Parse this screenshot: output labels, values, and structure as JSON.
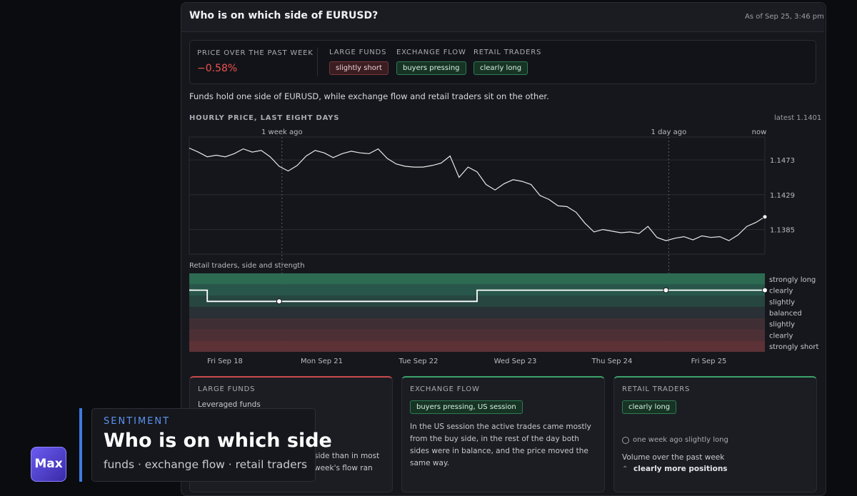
{
  "header": {
    "title": "Who is on which side of EURUSD?",
    "timestamp": "As of Sep 25, 3:46 pm"
  },
  "summary": {
    "price_label": "PRICE OVER THE PAST WEEK",
    "price_change": "−0.58%",
    "groups": [
      {
        "label": "LARGE FUNDS",
        "pill": "slightly short"
      },
      {
        "label": "EXCHANGE FLOW",
        "pill": "buyers pressing"
      },
      {
        "label": "RETAIL TRADERS",
        "pill": "clearly long"
      }
    ]
  },
  "description": "Funds hold one side of EURUSD, while exchange flow and retail traders sit on the other.",
  "chart_data": [
    {
      "type": "line",
      "title": "HOURLY PRICE, LAST EIGHT DAYS",
      "annotation": "latest 1.1401",
      "markers": [
        "1 week ago",
        "1 day ago",
        "now"
      ],
      "day_labels": [
        "Fri Sep 18",
        "Mon Sep 21",
        "Tue Sep 22",
        "Wed Sep 23",
        "Thu Sep 24",
        "Fri Sep 25"
      ],
      "values": [
        1.1488,
        1.1483,
        1.1477,
        1.1479,
        1.1477,
        1.1481,
        1.1487,
        1.1483,
        1.1485,
        1.1477,
        1.1465,
        1.1459,
        1.1466,
        1.1478,
        1.1485,
        1.1482,
        1.1476,
        1.1481,
        1.1484,
        1.1482,
        1.1481,
        1.1487,
        1.1475,
        1.1468,
        1.1465,
        1.1464,
        1.1464,
        1.1466,
        1.1469,
        1.1478,
        1.1451,
        1.1464,
        1.1458,
        1.1442,
        1.1435,
        1.1443,
        1.1448,
        1.1446,
        1.1442,
        1.1428,
        1.1423,
        1.1415,
        1.1414,
        1.1407,
        1.1393,
        1.1382,
        1.1385,
        1.1383,
        1.1381,
        1.1382,
        1.138,
        1.1389,
        1.1375,
        1.1371,
        1.1374,
        1.1376,
        1.1372,
        1.1377,
        1.1375,
        1.1376,
        1.1371,
        1.1378,
        1.1389,
        1.1394,
        1.1401
      ],
      "color": "#e8e8ea",
      "ylim": [
        1.1354,
        1.1502
      ],
      "yticks": [
        1.1473,
        1.1429,
        1.1385
      ],
      "grid": true
    },
    {
      "type": "step",
      "title": "Retail traders, side and strength",
      "values": [
        2,
        2,
        1,
        1,
        1,
        1,
        1,
        1,
        1,
        1,
        1,
        1,
        1,
        1,
        1,
        1,
        1,
        1,
        1,
        1,
        1,
        1,
        1,
        1,
        1,
        1,
        1,
        1,
        1,
        1,
        1,
        1,
        2,
        2,
        2,
        2,
        2,
        2,
        2,
        2,
        2,
        2,
        2,
        2,
        2,
        2,
        2,
        2,
        2,
        2,
        2,
        2,
        2,
        2,
        2,
        2,
        2,
        2,
        2,
        2,
        2,
        2,
        2,
        2,
        2
      ],
      "color": "#ffffff",
      "ylim": [
        -3.5,
        3.5
      ],
      "yticks": [
        {
          "value": 3,
          "label": "strongly long"
        },
        {
          "value": 2,
          "label": "clearly"
        },
        {
          "value": 1,
          "label": "slightly"
        },
        {
          "value": 0,
          "label": "balanced"
        },
        {
          "value": -1,
          "label": "slightly"
        },
        {
          "value": -2,
          "label": "clearly"
        },
        {
          "value": -3,
          "label": "strongly short"
        }
      ],
      "band_colors": [
        "#2d6a52",
        "#28564a",
        "#26463f",
        "#2a3136",
        "#3f2f35",
        "#4d3036",
        "#5c3237"
      ]
    }
  ],
  "cards": [
    {
      "title": "LARGE FUNDS",
      "subtitle": "Leveraged funds",
      "lines": [
        "side than in most",
        "week's flow ran"
      ]
    },
    {
      "title": "EXCHANGE FLOW",
      "pill": "buyers pressing, US session",
      "text": "In the US session the active trades came mostly from the buy side, in the rest of the day both sides were in balance, and the price moved the same way."
    },
    {
      "title": "RETAIL TRADERS",
      "pill": "clearly long",
      "note": "one week ago slightly long",
      "volume_label": "Volume over the past week",
      "volume_value": "clearly more positions"
    }
  ],
  "overlay": {
    "kicker": "SENTIMENT",
    "title": "Who is on which side",
    "subtitle": "funds · exchange flow · retail traders",
    "badge": "Max"
  }
}
